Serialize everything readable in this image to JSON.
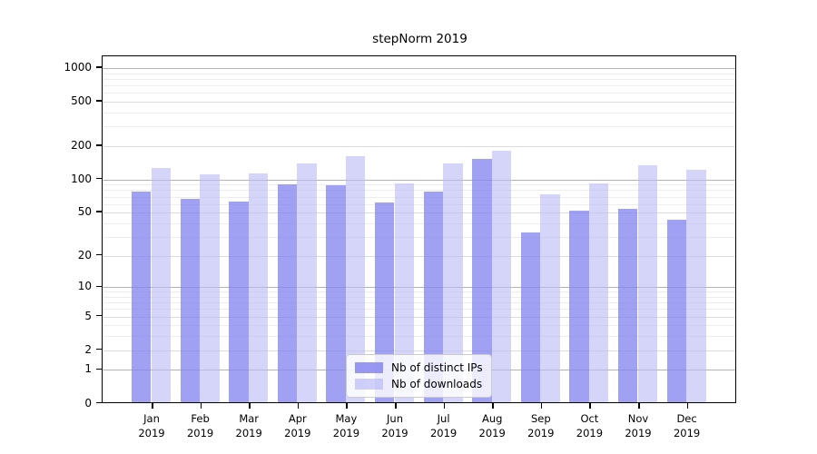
{
  "title": "stepNorm 2019",
  "colors": {
    "ips_bar": "#a6a6f4",
    "downloads_bar": "#d8d8f9",
    "major_grid": "#b3b3b3",
    "minor_grid": "#ededed",
    "axis": "#000000"
  },
  "legend": {
    "items": [
      {
        "series": "ips",
        "label": "Nb of distinct IPs"
      },
      {
        "series": "downloads",
        "label": "Nb of downloads"
      }
    ]
  },
  "chart_data": {
    "type": "bar",
    "title": "stepNorm 2019",
    "xlabel": "",
    "ylabel": "",
    "scale": "mirror-log (log10(value+1))",
    "grid": true,
    "legend_position": "bottom-center-inside",
    "categories": [
      "Jan",
      "Feb",
      "Mar",
      "Apr",
      "May",
      "Jun",
      "Jul",
      "Aug",
      "Sep",
      "Oct",
      "Nov",
      "Dec"
    ],
    "category_year": "2019",
    "series": [
      {
        "name": "Nb of distinct IPs",
        "values": [
          78,
          67,
          63,
          90,
          89,
          62,
          78,
          154,
          33,
          52,
          54,
          43
        ]
      },
      {
        "name": "Nb of downloads",
        "values": [
          128,
          112,
          114,
          140,
          163,
          93,
          140,
          182,
          74,
          93,
          135,
          123
        ]
      }
    ],
    "ylim": [
      0,
      1000
    ],
    "yticks": [
      0,
      1,
      2,
      5,
      10,
      20,
      50,
      100,
      200,
      500,
      1000
    ],
    "minor_yticks": [
      3,
      4,
      6,
      7,
      8,
      9,
      30,
      40,
      60,
      70,
      80,
      90,
      300,
      400,
      600,
      700,
      800,
      900
    ]
  }
}
